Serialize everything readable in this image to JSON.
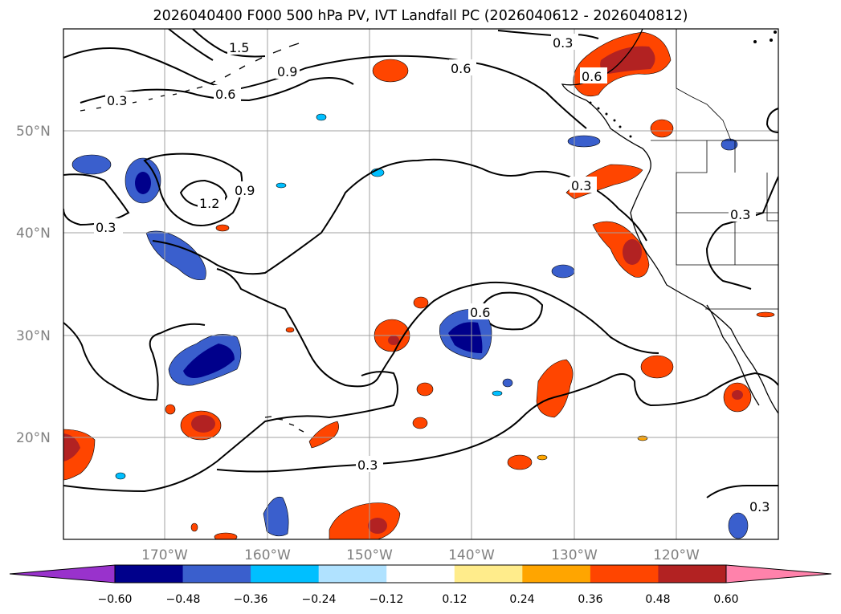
{
  "title": "2026040400 F000 500 hPa PV, IVT Landfall PC (2026040612 - 2026040812)",
  "map": {
    "lat_labels": [
      "50°N",
      "40°N",
      "30°N",
      "20°N"
    ],
    "lon_labels": [
      "170°W",
      "160°W",
      "150°W",
      "140°W",
      "130°W",
      "120°W"
    ],
    "contour_labels": [
      "1.5",
      "0.9",
      "0.6",
      "0.3",
      "0.3",
      "0.6",
      "0.6",
      "0.9",
      "1.2",
      "0.3",
      "0.3",
      "0.3",
      "0.6",
      "0.3",
      "0.3"
    ]
  },
  "colorbar": {
    "colors": [
      "#9932cc",
      "#00008b",
      "#3a5fcd",
      "#00bfff",
      "#b0e2ff",
      "#ffffff",
      "#ffec8b",
      "#ffa500",
      "#ff4500",
      "#b22222",
      "#ff82ab"
    ],
    "tick_labels": [
      "−0.60",
      "−0.48",
      "−0.36",
      "−0.24",
      "−0.12",
      "0.12",
      "0.24",
      "0.36",
      "0.48",
      "0.60"
    ]
  }
}
